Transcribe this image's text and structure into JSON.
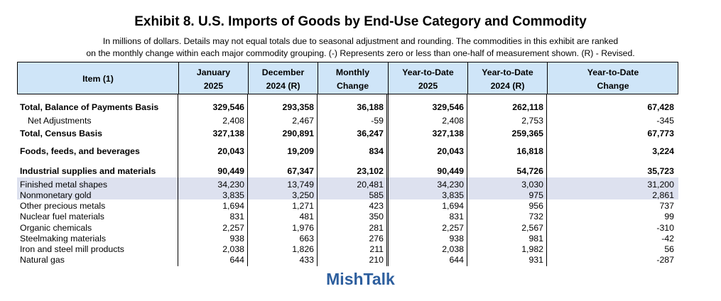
{
  "title": "Exhibit 8. U.S. Imports of Goods by End-Use Category and Commodity",
  "subtitle_line1": "In millions of dollars. Details may not equal totals due to seasonal adjustment and rounding. The commodities in this exhibit are ranked",
  "subtitle_line2": "on the monthly change within each major commodity grouping. (-) Represents zero or less than one-half of measurement shown. (R) - Revised.",
  "header": {
    "item": "Item (1)",
    "jan_line1": "January",
    "jan_line2": "2025",
    "dec_line1": "December",
    "dec_line2": "2024 (R)",
    "mon_line1": "Monthly",
    "mon_line2": "Change",
    "ytd25_line1": "Year-to-Date",
    "ytd25_line2": "2025",
    "ytd24_line1": "Year-to-Date",
    "ytd24_line2": "2024 (R)",
    "ytdchg_line1": "Year-to-Date",
    "ytdchg_line2": "Change"
  },
  "rows": [
    {
      "label": "Total, Balance of Payments Basis",
      "values": [
        "329,546",
        "293,358",
        "36,188",
        "329,546",
        "262,118",
        "67,428"
      ]
    },
    {
      "label": "Net Adjustments",
      "values": [
        "2,408",
        "2,467",
        "-59",
        "2,408",
        "2,753",
        "-345"
      ]
    },
    {
      "label": "Total, Census Basis",
      "values": [
        "327,138",
        "290,891",
        "36,247",
        "327,138",
        "259,365",
        "67,773"
      ]
    },
    {
      "label": "Foods, feeds, and beverages",
      "values": [
        "20,043",
        "19,209",
        "834",
        "20,043",
        "16,818",
        "3,224"
      ]
    },
    {
      "label": "Industrial supplies and materials",
      "values": [
        "90,449",
        "67,347",
        "23,102",
        "90,449",
        "54,726",
        "35,723"
      ]
    },
    {
      "label": "Finished metal shapes",
      "values": [
        "34,230",
        "13,749",
        "20,481",
        "34,230",
        "3,030",
        "31,200"
      ]
    },
    {
      "label": "Nonmonetary gold",
      "values": [
        "3,835",
        "3,250",
        "585",
        "3,835",
        "975",
        "2,861"
      ]
    },
    {
      "label": "Other precious metals",
      "values": [
        "1,694",
        "1,271",
        "423",
        "1,694",
        "956",
        "737"
      ]
    },
    {
      "label": "Nuclear fuel materials",
      "values": [
        "831",
        "481",
        "350",
        "831",
        "732",
        "99"
      ]
    },
    {
      "label": "Organic chemicals",
      "values": [
        "2,257",
        "1,976",
        "281",
        "2,257",
        "2,567",
        "-310"
      ]
    },
    {
      "label": "Steelmaking materials",
      "values": [
        "938",
        "663",
        "276",
        "938",
        "981",
        "-42"
      ]
    },
    {
      "label": "Iron and steel mill products",
      "values": [
        "2,038",
        "1,826",
        "211",
        "2,038",
        "1,982",
        "56"
      ]
    },
    {
      "label": "Natural gas",
      "values": [
        "644",
        "433",
        "210",
        "644",
        "931",
        "-287"
      ]
    }
  ],
  "brand": "MishTalk",
  "colors": {
    "header_bg": "#cfe5f8",
    "highlight": "#dde1ef",
    "brand": "#2e5f9e"
  }
}
